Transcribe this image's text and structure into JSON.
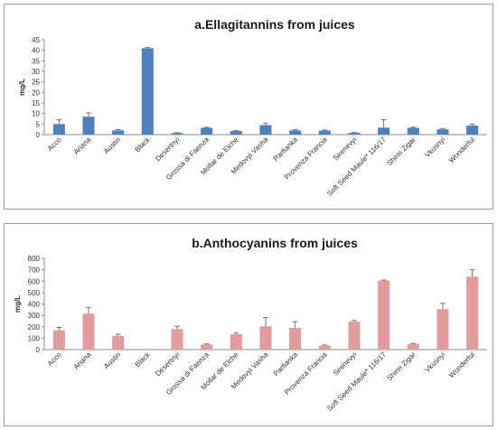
{
  "chart_data": [
    {
      "type": "bar",
      "title": "a.Ellagitannins from juices",
      "xlabel": "",
      "ylabel": "mg/L",
      "ylim": [
        0,
        45
      ],
      "yticks": [
        0,
        5,
        10,
        15,
        20,
        25,
        30,
        35,
        40,
        45
      ],
      "grid": false,
      "color": "#4f81bd",
      "categories": [
        "Acco",
        "Ariana",
        "Austin",
        "Black",
        "Desertnyi",
        "Grossa di Faenza",
        "Mollar de Elche",
        "Medovyi Vasha",
        "Parfianka",
        "Provenza Francia",
        "Sirenevyi",
        "Soft Seed Maule* 116/17",
        "Shirin Zigar",
        "Vkusnyi",
        "Wonderful"
      ],
      "values": [
        5.0,
        8.5,
        2.0,
        41.0,
        0.7,
        3.2,
        1.7,
        4.5,
        2.0,
        1.9,
        0.8,
        3.3,
        3.2,
        2.5,
        4.3
      ],
      "errors": [
        2.0,
        1.8,
        0.4,
        0.3,
        0.2,
        0.3,
        0.3,
        1.0,
        0.3,
        0.3,
        0.2,
        3.8,
        0.3,
        0.4,
        0.6
      ]
    },
    {
      "type": "bar",
      "title": "b.Anthocyanins from juices",
      "xlabel": "",
      "ylabel": "mg/L",
      "ylim": [
        0,
        800
      ],
      "yticks": [
        0,
        100,
        200,
        300,
        400,
        500,
        600,
        700,
        800
      ],
      "grid": false,
      "color": "#e39c9c",
      "categories": [
        "Acco",
        "Ariana",
        "Austin",
        "Black",
        "Desertnyi",
        "Grossa di Faenza",
        "Mollar de Elche",
        "Medovyi Vasha",
        "Parfianka",
        "Provenza Francia",
        "Sirenevyi",
        "Soft Seed Maule* 116/17",
        "Shirin Zigar",
        "Vkusnyi",
        "Wonderful"
      ],
      "values": [
        170,
        315,
        120,
        0,
        180,
        45,
        135,
        205,
        190,
        35,
        245,
        605,
        50,
        355,
        640
      ],
      "errors": [
        25,
        55,
        15,
        0,
        25,
        5,
        10,
        75,
        55,
        5,
        10,
        5,
        5,
        50,
        60
      ]
    }
  ]
}
